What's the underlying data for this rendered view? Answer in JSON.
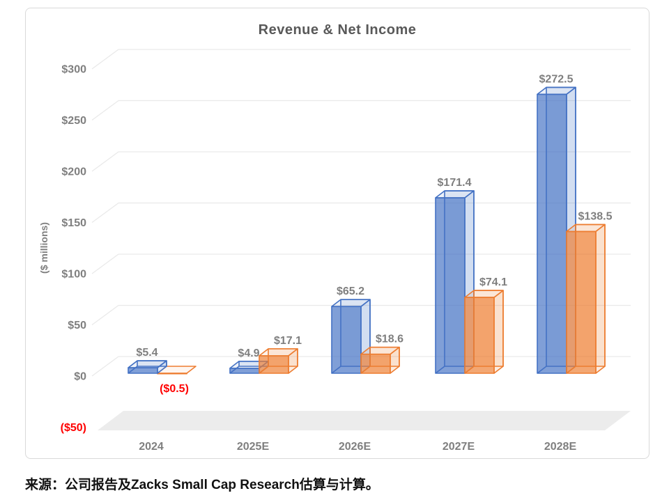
{
  "source_note": "来源：公司报告及Zacks Small Cap Research估算与计算。",
  "chart_data": {
    "type": "bar",
    "variant": "3d-column",
    "title": "Revenue & Net Income",
    "ylabel": "($ millions)",
    "xlabel": "",
    "categories": [
      "2024",
      "2025E",
      "2026E",
      "2027E",
      "2028E"
    ],
    "series": [
      {
        "name": "Revenue",
        "color": "#4472C4",
        "values": [
          5.4,
          4.9,
          65.2,
          171.4,
          272.5
        ],
        "labels": [
          "$5.4",
          "$4.9",
          "$65.2",
          "$171.4",
          "$272.5"
        ]
      },
      {
        "name": "Net Income",
        "color": "#ED7D31",
        "values": [
          -0.5,
          17.1,
          18.6,
          74.1,
          138.5
        ],
        "labels": [
          "($0.5)",
          "$17.1",
          "$18.6",
          "$74.1",
          "$138.5"
        ]
      }
    ],
    "y_ticks": [
      {
        "label": "$300",
        "value": 300,
        "color": "#7F7F7F"
      },
      {
        "label": "$250",
        "value": 250,
        "color": "#7F7F7F"
      },
      {
        "label": "$200",
        "value": 200,
        "color": "#7F7F7F"
      },
      {
        "label": "$150",
        "value": 150,
        "color": "#7F7F7F"
      },
      {
        "label": "$100",
        "value": 100,
        "color": "#7F7F7F"
      },
      {
        "label": "$50",
        "value": 50,
        "color": "#7F7F7F"
      },
      {
        "label": "$0",
        "value": 0,
        "color": "#7F7F7F"
      },
      {
        "label": "($50)",
        "value": -50,
        "color": "#FF0000"
      }
    ],
    "ylim": [
      -50,
      300
    ],
    "grid": true,
    "legend": "none",
    "value_label_color": "#7F7F7F",
    "negative_label_color": "#FF0000",
    "floor_color": "#ECECEC",
    "grid_color": "#E9E9E9"
  }
}
